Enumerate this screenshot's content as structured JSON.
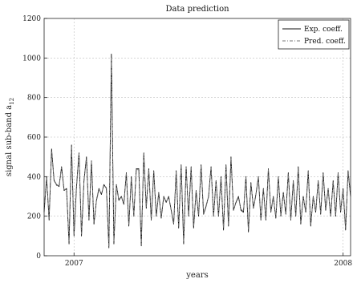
{
  "chart_data": {
    "type": "line",
    "title": "Data prediction",
    "xlabel": "years",
    "ylabel": "signal sub-band a",
    "ylabel_subscript": "12",
    "ylim": [
      0,
      1200
    ],
    "xlim": [
      0,
      123
    ],
    "y_ticks": [
      0,
      200,
      400,
      600,
      800,
      1000,
      1200
    ],
    "x_ticks": [
      {
        "x": 12,
        "label": "2007"
      },
      {
        "x": 120,
        "label": "2008"
      }
    ],
    "grid": true,
    "legend_position": "top-right",
    "colors": {
      "exp": "#111111",
      "pred": "#777777",
      "grid": "#bdbdbd",
      "axis": "#222222"
    },
    "series": [
      {
        "name": "Exp. coeff.",
        "style": "solid",
        "x": [
          0,
          1,
          2,
          3,
          4,
          5,
          6,
          7,
          8,
          9,
          10,
          11,
          12,
          13,
          14,
          15,
          16,
          17,
          18,
          19,
          20,
          21,
          22,
          23,
          24,
          25,
          26,
          27,
          28,
          29,
          30,
          31,
          32,
          33,
          34,
          35,
          36,
          37,
          38,
          39,
          40,
          41,
          42,
          43,
          44,
          45,
          46,
          47,
          48,
          49,
          50,
          51,
          52,
          53,
          54,
          55,
          56,
          57,
          58,
          59,
          60,
          61,
          62,
          63,
          64,
          65,
          66,
          67,
          68,
          69,
          70,
          71,
          72,
          73,
          74,
          75,
          76,
          77,
          78,
          79,
          80,
          81,
          82,
          83,
          84,
          85,
          86,
          87,
          88,
          89,
          90,
          91,
          92,
          93,
          94,
          95,
          96,
          97,
          98,
          99,
          100,
          101,
          102,
          103,
          104,
          105,
          106,
          107,
          108,
          109,
          110,
          111,
          112,
          113,
          114,
          115,
          116,
          117,
          118,
          119,
          120,
          121,
          122,
          123
        ],
        "values": [
          220,
          400,
          180,
          540,
          380,
          360,
          350,
          450,
          330,
          340,
          60,
          560,
          100,
          350,
          520,
          100,
          380,
          500,
          180,
          480,
          160,
          280,
          340,
          310,
          360,
          340,
          40,
          1020,
          60,
          360,
          280,
          300,
          260,
          420,
          150,
          400,
          200,
          440,
          440,
          50,
          520,
          240,
          440,
          180,
          430,
          200,
          320,
          190,
          300,
          270,
          300,
          230,
          160,
          430,
          140,
          460,
          60,
          450,
          200,
          450,
          140,
          330,
          200,
          460,
          210,
          250,
          300,
          450,
          200,
          380,
          200,
          400,
          130,
          460,
          150,
          500,
          230,
          270,
          300,
          230,
          220,
          400,
          120,
          370,
          240,
          310,
          400,
          180,
          340,
          180,
          440,
          220,
          300,
          190,
          400,
          200,
          320,
          210,
          420,
          180,
          380,
          200,
          450,
          160,
          300,
          220,
          430,
          150,
          300,
          220,
          380,
          210,
          420,
          230,
          340,
          200,
          380,
          200,
          420,
          220,
          340,
          130,
          430,
          300
        ]
      },
      {
        "name": "Pred. coeff.",
        "style": "dash-dot",
        "x": [
          0,
          1,
          2,
          3,
          4,
          5,
          6,
          7,
          8,
          9,
          10,
          11,
          12,
          13,
          14,
          15,
          16,
          17,
          18,
          19,
          20,
          21,
          22,
          23,
          24,
          25,
          26,
          27,
          28,
          29,
          30,
          31,
          32,
          33,
          34,
          35,
          36,
          37,
          38,
          39,
          40,
          41,
          42,
          43,
          44,
          45,
          46,
          47,
          48,
          49,
          50,
          51,
          52,
          53,
          54,
          55,
          56,
          57,
          58,
          59,
          60,
          61,
          62,
          63,
          64,
          65,
          66,
          67,
          68,
          69,
          70,
          71,
          72,
          73,
          74,
          75,
          76,
          77,
          78,
          79,
          80,
          81,
          82,
          83,
          84,
          85,
          86,
          87,
          88,
          89,
          90,
          91,
          92,
          93,
          94,
          95,
          96,
          97,
          98,
          99,
          100,
          101,
          102,
          103,
          104,
          105,
          106,
          107,
          108,
          109,
          110,
          111,
          112,
          113,
          114,
          115,
          116,
          117,
          118,
          119,
          120,
          121,
          122,
          123
        ],
        "values": [
          230,
          395,
          190,
          530,
          385,
          355,
          355,
          445,
          335,
          335,
          70,
          550,
          110,
          345,
          515,
          110,
          375,
          495,
          190,
          475,
          170,
          275,
          335,
          315,
          355,
          345,
          50,
          1000,
          70,
          355,
          285,
          295,
          265,
          415,
          160,
          395,
          205,
          435,
          435,
          60,
          515,
          245,
          435,
          185,
          425,
          205,
          315,
          195,
          295,
          275,
          295,
          235,
          165,
          425,
          150,
          455,
          70,
          445,
          205,
          445,
          150,
          325,
          205,
          455,
          215,
          255,
          295,
          445,
          205,
          375,
          205,
          395,
          140,
          455,
          160,
          495,
          235,
          265,
          295,
          235,
          225,
          395,
          130,
          365,
          245,
          305,
          395,
          185,
          335,
          185,
          435,
          225,
          295,
          195,
          395,
          205,
          315,
          215,
          415,
          185,
          375,
          205,
          445,
          170,
          295,
          225,
          425,
          160,
          295,
          225,
          375,
          215,
          415,
          235,
          335,
          205,
          375,
          205,
          415,
          225,
          335,
          140,
          425,
          305
        ]
      }
    ]
  }
}
